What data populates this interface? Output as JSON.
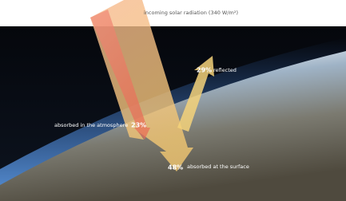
{
  "title": "incoming solar radiation (340 W/m²)",
  "flows": [
    {
      "value_label": "29%",
      "label": "reflected"
    },
    {
      "label": "absorbed in the atmosphere",
      "value_label": "23%"
    },
    {
      "value_label": "48%",
      "label": "absorbed at the surface"
    }
  ]
}
